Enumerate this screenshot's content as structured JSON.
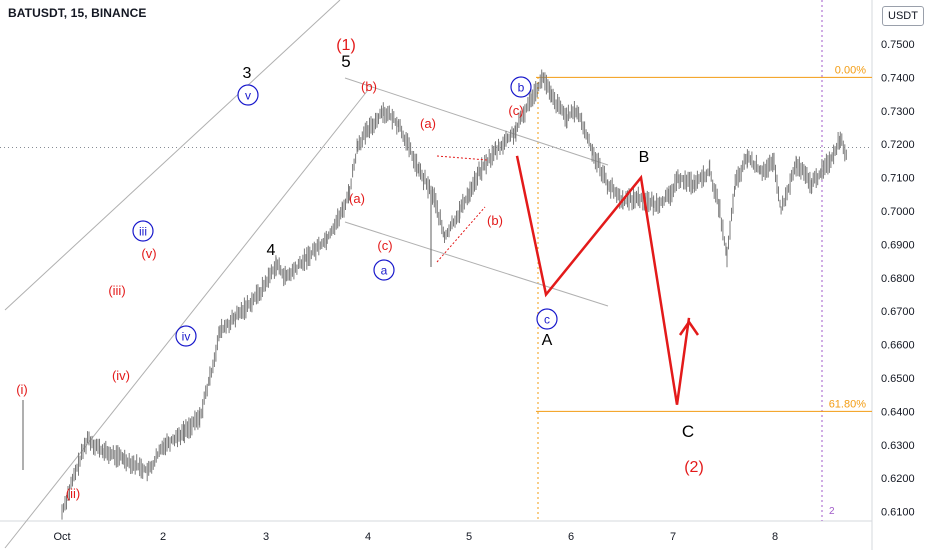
{
  "header": {
    "symbol": "BATUSDT, 15, BINANCE",
    "unit": "USDT"
  },
  "chart_data": {
    "type": "candlestick",
    "title": "BATUSDT, 15, BINANCE",
    "y_unit": "USDT",
    "ylim": [
      0.6085,
      0.7565
    ],
    "y_ticks": [
      "0.7500",
      "0.7400",
      "0.7300",
      "0.7200",
      "0.7100",
      "0.7000",
      "0.6900",
      "0.6800",
      "0.6700",
      "0.6600",
      "0.6500",
      "0.6400",
      "0.6300",
      "0.6200",
      "0.6100"
    ],
    "x_ticks": [
      "Oct",
      "2",
      "3",
      "4",
      "5",
      "6",
      "7",
      "8"
    ],
    "current_price": 0.719,
    "fib_levels": [
      {
        "label": "0.00%",
        "value": 0.74
      },
      {
        "label": "61.80%",
        "value": 0.64
      }
    ],
    "price_path": [
      [
        0.0,
        0.61
      ],
      [
        0.25,
        0.632
      ],
      [
        0.4,
        0.628
      ],
      [
        0.6,
        0.626
      ],
      [
        0.85,
        0.622
      ],
      [
        1.0,
        0.63
      ],
      [
        1.2,
        0.634
      ],
      [
        1.35,
        0.638
      ],
      [
        1.45,
        0.65
      ],
      [
        1.55,
        0.664
      ],
      [
        1.7,
        0.668
      ],
      [
        1.95,
        0.676
      ],
      [
        2.1,
        0.684
      ],
      [
        2.2,
        0.68
      ],
      [
        2.4,
        0.686
      ],
      [
        2.6,
        0.692
      ],
      [
        2.75,
        0.7
      ],
      [
        2.82,
        0.706
      ],
      [
        2.9,
        0.72
      ],
      [
        3.0,
        0.724
      ],
      [
        3.15,
        0.73
      ],
      [
        3.3,
        0.726
      ],
      [
        3.5,
        0.712
      ],
      [
        3.65,
        0.704
      ],
      [
        3.75,
        0.692
      ],
      [
        3.9,
        0.7
      ],
      [
        4.0,
        0.706
      ],
      [
        4.1,
        0.712
      ],
      [
        4.25,
        0.718
      ],
      [
        4.45,
        0.724
      ],
      [
        4.6,
        0.734
      ],
      [
        4.72,
        0.74
      ],
      [
        4.8,
        0.734
      ],
      [
        4.95,
        0.728
      ],
      [
        5.05,
        0.73
      ],
      [
        5.2,
        0.718
      ],
      [
        5.35,
        0.708
      ],
      [
        5.5,
        0.703
      ],
      [
        5.65,
        0.704
      ],
      [
        5.8,
        0.702
      ],
      [
        5.95,
        0.704
      ],
      [
        6.05,
        0.71
      ],
      [
        6.2,
        0.708
      ],
      [
        6.35,
        0.712
      ],
      [
        6.45,
        0.7
      ],
      [
        6.52,
        0.686
      ],
      [
        6.6,
        0.708
      ],
      [
        6.72,
        0.716
      ],
      [
        6.85,
        0.712
      ],
      [
        6.98,
        0.714
      ],
      [
        7.05,
        0.7
      ],
      [
        7.2,
        0.714
      ],
      [
        7.35,
        0.708
      ],
      [
        7.45,
        0.712
      ],
      [
        7.55,
        0.716
      ],
      [
        7.63,
        0.722
      ],
      [
        7.7,
        0.716
      ]
    ],
    "projection": [
      {
        "label": "A",
        "value": 0.675
      },
      {
        "label": "B",
        "value": 0.71
      },
      {
        "label": "C",
        "value": 0.642
      }
    ],
    "wave_labels": [
      {
        "text": "(i)"
      },
      {
        "text": "(ii)"
      },
      {
        "text": "(iii)"
      },
      {
        "text": "(iv)"
      },
      {
        "text": "(v)"
      },
      {
        "text": "iii"
      },
      {
        "text": "iv"
      },
      {
        "text": "v"
      },
      {
        "text": "3"
      },
      {
        "text": "4"
      },
      {
        "text": "5"
      },
      {
        "text": "(1)"
      },
      {
        "text": "(b)"
      },
      {
        "text": "(a)"
      },
      {
        "text": "(c)"
      },
      {
        "text": "a"
      },
      {
        "text": "(a)"
      },
      {
        "text": "(b)"
      },
      {
        "text": "(c)"
      },
      {
        "text": "b"
      },
      {
        "text": "c"
      },
      {
        "text": "A"
      },
      {
        "text": "B"
      },
      {
        "text": "C"
      },
      {
        "text": "(2)"
      }
    ],
    "extra_label": "2",
    "colors": {
      "red": "#e31a1a",
      "blue": "#1a1acc",
      "orange": "#f39c12",
      "candles": "#7a7a7a",
      "channel": "#b0b0b0",
      "magenta": "#a05ac8"
    }
  }
}
